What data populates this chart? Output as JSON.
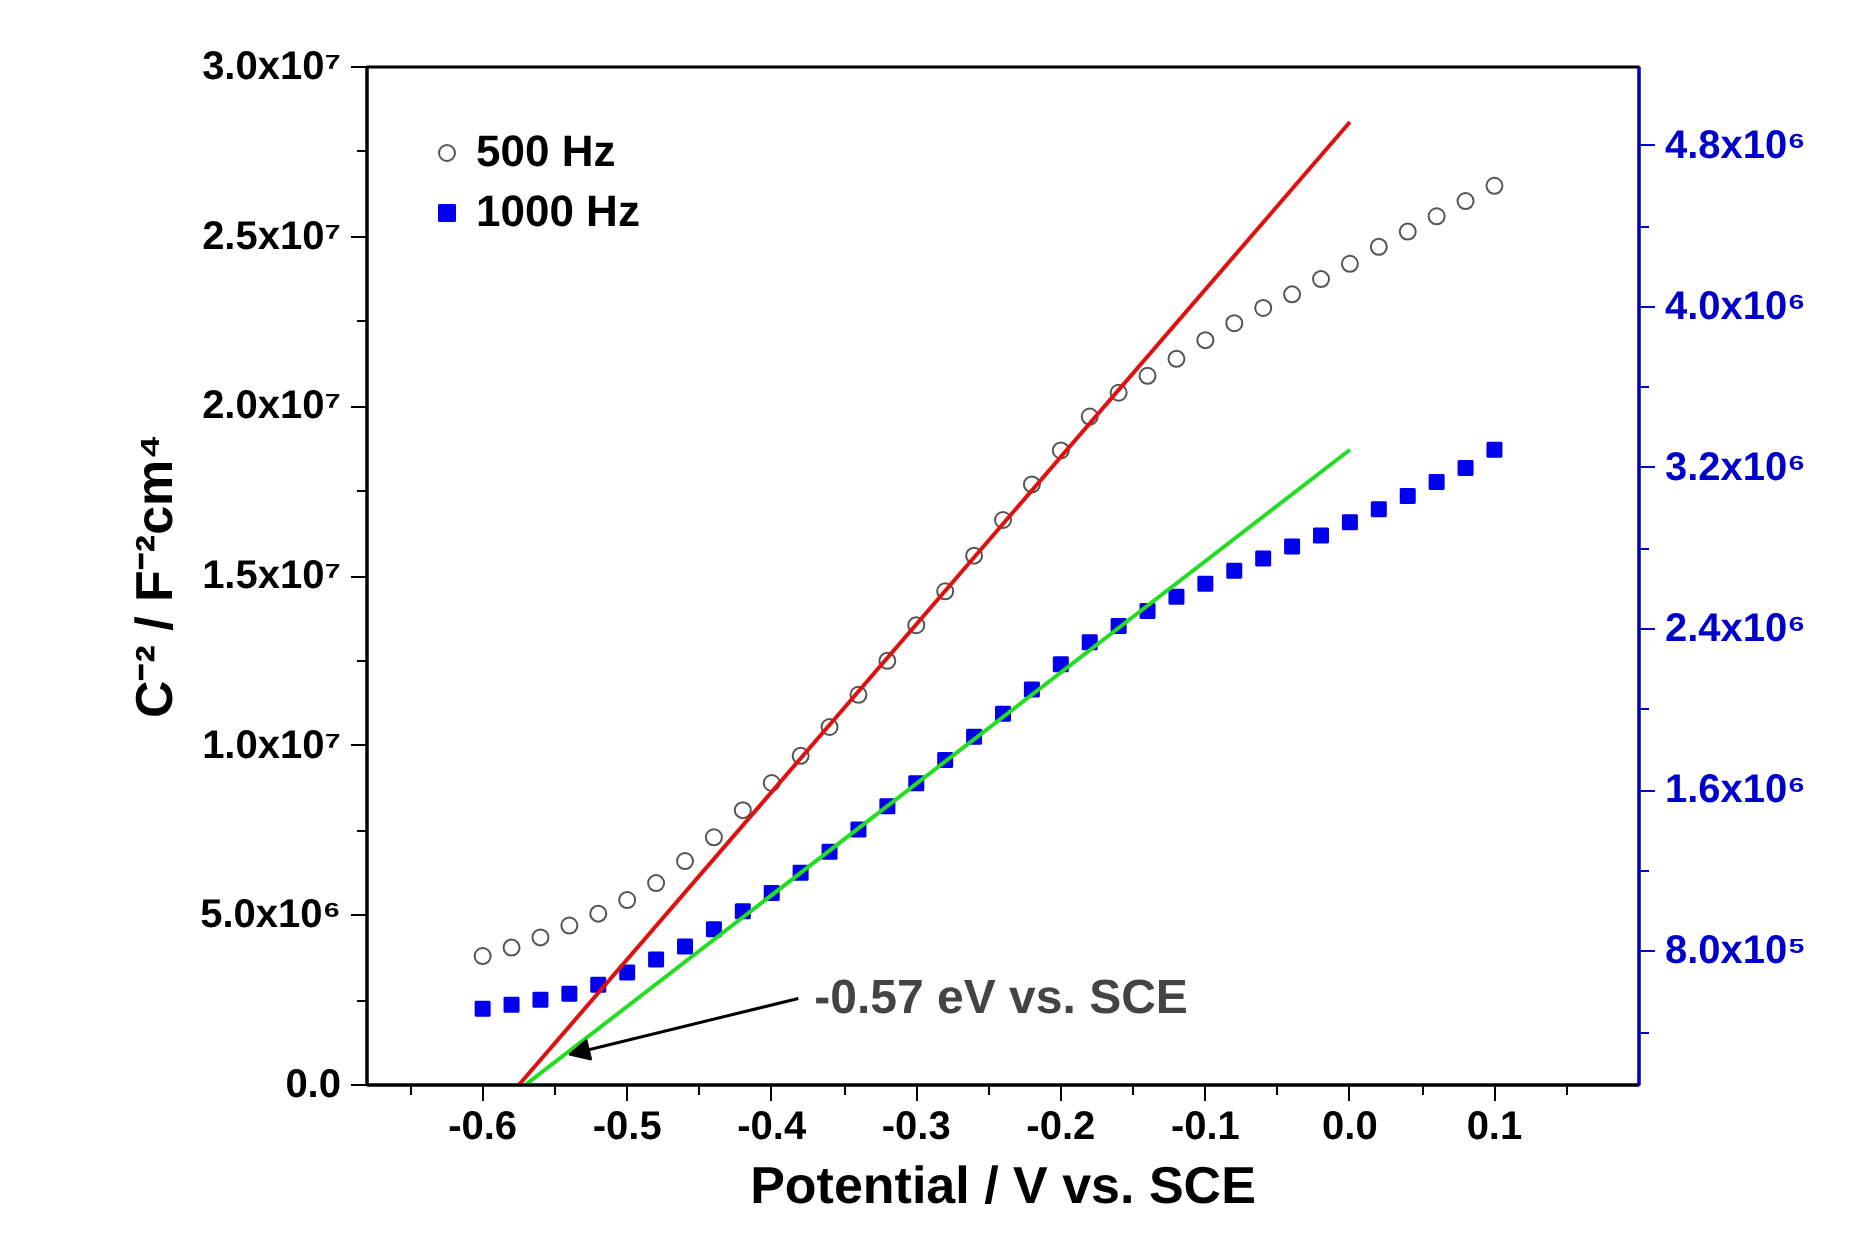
{
  "chart_data": {
    "type": "scatter",
    "xlabel": "Potential / V vs. SCE",
    "ylabel": "C⁻² / F⁻²cm⁴",
    "xlim": [
      -0.68,
      0.2
    ],
    "ylim": [
      0,
      30000000
    ],
    "y2lim": [
      137000,
      5190000
    ],
    "xticks": [
      {
        "value": -0.65,
        "label": null
      },
      -0.6,
      {
        "value": -0.55,
        "label": null
      },
      -0.5,
      {
        "value": -0.45,
        "label": null
      },
      -0.4,
      {
        "value": -0.35,
        "label": null
      },
      -0.3,
      {
        "value": -0.25,
        "label": null
      },
      -0.2,
      {
        "value": -0.15,
        "label": null
      },
      -0.1,
      {
        "value": -0.05,
        "label": null
      },
      {
        "value": 0,
        "label": "0.0"
      },
      {
        "value": 0.05,
        "label": null
      },
      0.1,
      {
        "value": 0.15,
        "label": null
      }
    ],
    "yticks": [
      {
        "value": 0,
        "label": "0.0"
      },
      {
        "value": 2500000,
        "label": null
      },
      {
        "value": 5000000,
        "label": "5.0x10⁶"
      },
      {
        "value": 7500000,
        "label": null
      },
      {
        "value": 10000000,
        "label": "1.0x10⁷"
      },
      {
        "value": 12500000,
        "label": null
      },
      {
        "value": 15000000,
        "label": "1.5x10⁷"
      },
      {
        "value": 17500000,
        "label": null
      },
      {
        "value": 20000000,
        "label": "2.0x10⁷"
      },
      {
        "value": 22500000,
        "label": null
      },
      {
        "value": 25000000,
        "label": "2.5x10⁷"
      },
      {
        "value": 27500000,
        "label": null
      },
      {
        "value": 30000000,
        "label": "3.0x10⁷"
      }
    ],
    "y2ticks": [
      {
        "value": 400000,
        "label": null
      },
      {
        "value": 800000,
        "label": "8.0x10⁵"
      },
      {
        "value": 1200000,
        "label": null
      },
      {
        "value": 1600000,
        "label": "1.6x10⁶"
      },
      {
        "value": 2000000,
        "label": null
      },
      {
        "value": 2400000,
        "label": "2.4x10⁶"
      },
      {
        "value": 2800000,
        "label": null
      },
      {
        "value": 3200000,
        "label": "3.2x10⁶"
      },
      {
        "value": 3600000,
        "label": null
      },
      {
        "value": 4000000,
        "label": "4.0x10⁶"
      },
      {
        "value": 4400000,
        "label": null
      },
      {
        "value": 4800000,
        "label": "4.8x10⁶"
      }
    ],
    "x": [
      -0.6,
      -0.58,
      -0.56,
      -0.54,
      -0.52,
      -0.5,
      -0.48,
      -0.46,
      -0.44,
      -0.42,
      -0.4,
      -0.38,
      -0.36,
      -0.34,
      -0.32,
      -0.3,
      -0.28,
      -0.26,
      -0.24,
      -0.22,
      -0.2,
      -0.18,
      -0.16,
      -0.14,
      -0.12,
      -0.1,
      -0.08,
      -0.06,
      -0.04,
      -0.02,
      0.0,
      0.02,
      0.04,
      0.06,
      0.08,
      0.1
    ],
    "series": [
      {
        "name": "500 Hz",
        "color": "#555555",
        "marker": "circle",
        "values": [
          3800000,
          4050000,
          4350000,
          4700000,
          5050000,
          5450000,
          5950000,
          6600000,
          7300000,
          8100000,
          8900000,
          9700000,
          10550000,
          11500000,
          12500000,
          13550000,
          14550000,
          15600000,
          16650000,
          17700000,
          18700000,
          19700000,
          20400000,
          20900000,
          21400000,
          21950000,
          22450000,
          22900000,
          23300000,
          23750000,
          24200000,
          24700000,
          25150000,
          25600000,
          26050000,
          26500000
        ]
      },
      {
        "name": "1000 Hz",
        "color": "#0000ee",
        "marker": "square",
        "axis": "y2",
        "values": [
          515000,
          535000,
          560000,
          590000,
          635000,
          695000,
          760000,
          825000,
          910000,
          1000000,
          1090000,
          1190000,
          1295000,
          1405000,
          1520000,
          1635000,
          1750000,
          1865000,
          1980000,
          2100000,
          2225000,
          2335000,
          2415000,
          2490000,
          2560000,
          2625000,
          2690000,
          2750000,
          2810000,
          2865000,
          2930000,
          2995000,
          3060000,
          3130000,
          3200000,
          3290000
        ]
      },
      {
        "type": "line",
        "color": "#e01010",
        "x": [
          -0.575,
          0.0
        ],
        "values": [
          0,
          28380000
        ]
      },
      {
        "type": "line",
        "color": "#22dd22",
        "axis": "y2",
        "x": [
          -0.57,
          0.0
        ],
        "values": [
          140000,
          3290000
        ]
      }
    ],
    "annotations": [
      {
        "text": "-0.57 eV vs. SCE",
        "x": -0.54,
        "y": 900000
      }
    ],
    "legend": "top left",
    "grid": false
  }
}
